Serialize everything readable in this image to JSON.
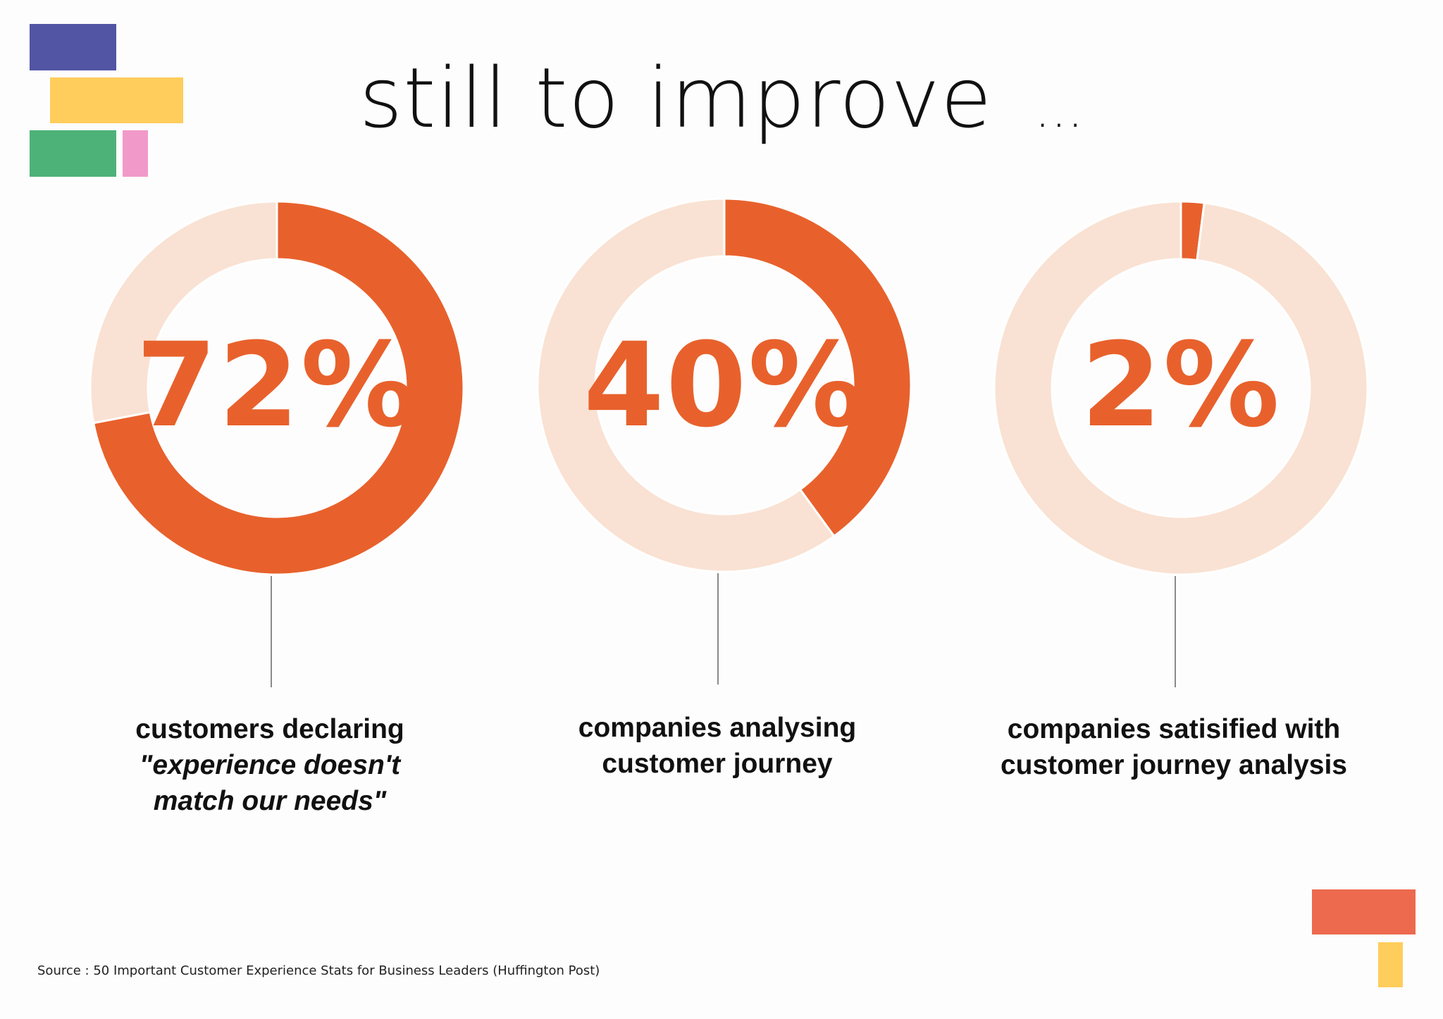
{
  "page": {
    "title": "still to improve",
    "title_ellipsis": "..."
  },
  "colors": {
    "accent": "#e8612c",
    "remainder": "#f9e2d3",
    "deco_blue": "#5155a3",
    "deco_yellow": "#ffcd5c",
    "deco_green": "#4db277",
    "deco_pink": "#f19ac9",
    "deco_red": "#ed6a4e"
  },
  "chart_data": [
    {
      "type": "pie",
      "donut": true,
      "values": [
        72,
        28
      ],
      "label": "72%",
      "caption_lines": [
        "customers declaring",
        "\"experience doesn't",
        "match our needs\""
      ]
    },
    {
      "type": "pie",
      "donut": true,
      "values": [
        40,
        60
      ],
      "label": "40%",
      "caption_lines": [
        "companies analysing",
        "customer journey"
      ]
    },
    {
      "type": "pie",
      "donut": true,
      "values": [
        2,
        98
      ],
      "label": "2%",
      "caption_lines": [
        "companies satisified with",
        "customer journey analysis"
      ]
    }
  ],
  "source": "Source : 50 Important Customer Experience Stats for Business Leaders (Huffington Post)"
}
